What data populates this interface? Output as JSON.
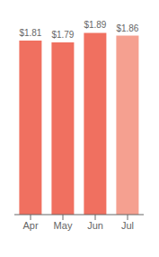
{
  "chart_data": {
    "type": "bar",
    "categories": [
      "Apr",
      "May",
      "Jun",
      "Jul"
    ],
    "values": [
      1.81,
      1.79,
      1.89,
      1.86
    ],
    "value_labels": [
      "$1.81",
      "$1.79",
      "$1.89",
      "$1.86"
    ],
    "data_labels": true,
    "colors": [
      "#f07060",
      "#f07060",
      "#f07060",
      "#f5a090"
    ],
    "ylim": [
      0,
      1.95
    ],
    "tick_labels": "x"
  }
}
